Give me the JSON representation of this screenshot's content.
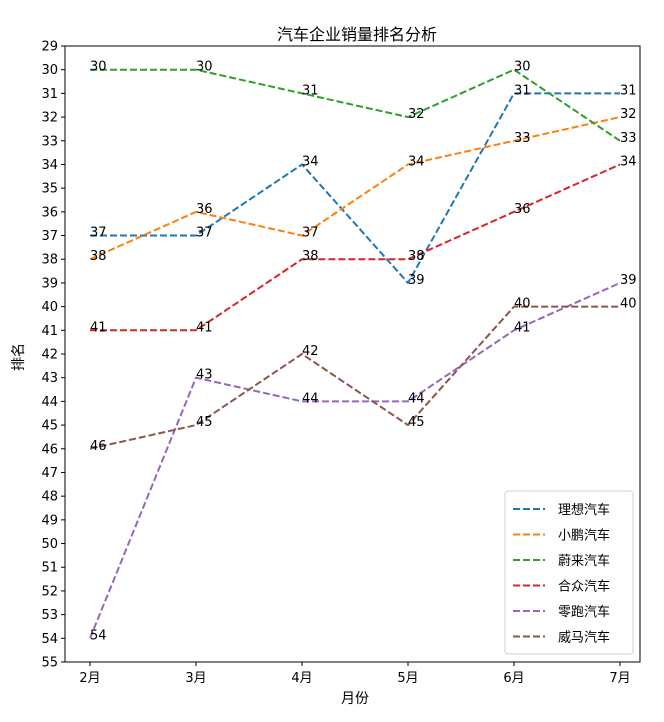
{
  "chart_data": {
    "type": "line",
    "title": "汽车企业销量排名分析",
    "xlabel": "月份",
    "ylabel": "排名",
    "categories": [
      "2月",
      "3月",
      "4月",
      "5月",
      "6月",
      "7月"
    ],
    "ylim": [
      55,
      29
    ],
    "y_inverted": true,
    "y_ticks": [
      29,
      30,
      31,
      32,
      33,
      34,
      35,
      36,
      37,
      38,
      39,
      40,
      41,
      42,
      43,
      44,
      45,
      46,
      47,
      48,
      49,
      50,
      51,
      52,
      53,
      54,
      55
    ],
    "grid": false,
    "legend_position": "lower-right",
    "line_style": "dashed",
    "series": [
      {
        "name": "理想汽车",
        "color": "#1f77b4",
        "values": [
          37,
          37,
          34,
          39,
          31,
          31
        ]
      },
      {
        "name": "小鹏汽车",
        "color": "#ff7f0e",
        "values": [
          38,
          36,
          37,
          34,
          33,
          32
        ]
      },
      {
        "name": "蔚来汽车",
        "color": "#2ca02c",
        "values": [
          30,
          30,
          31,
          32,
          30,
          33
        ]
      },
      {
        "name": "合众汽车",
        "color": "#d62728",
        "values": [
          41,
          41,
          38,
          38,
          36,
          34
        ]
      },
      {
        "name": "零跑汽车",
        "color": "#9467bd",
        "values": [
          54,
          43,
          44,
          44,
          41,
          39
        ]
      },
      {
        "name": "威马汽车",
        "color": "#8c564b",
        "values": [
          46,
          45,
          42,
          45,
          40,
          40
        ]
      }
    ]
  }
}
